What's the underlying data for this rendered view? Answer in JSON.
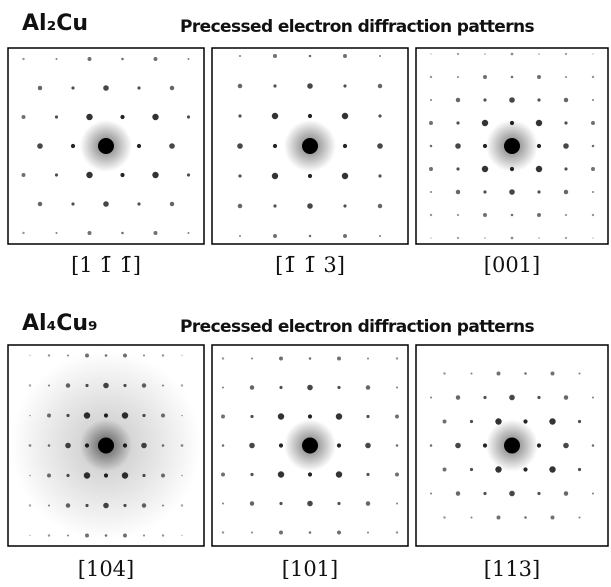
{
  "rows": [
    {
      "compound": "Al₂Cu",
      "subtitle": "Precessed electron diffraction patterns",
      "panels": [
        {
          "zone_axis": "[1 1̄ 1̄]"
        },
        {
          "zone_axis": "[1̄ 1̄ 3]"
        },
        {
          "zone_axis": "[001]"
        }
      ]
    },
    {
      "compound": "Al₄Cu₉",
      "subtitle": "Precessed electron diffraction patterns",
      "panels": [
        {
          "zone_axis": "[104]"
        },
        {
          "zone_axis": "[101]"
        },
        {
          "zone_axis": "[113]"
        }
      ]
    }
  ]
}
